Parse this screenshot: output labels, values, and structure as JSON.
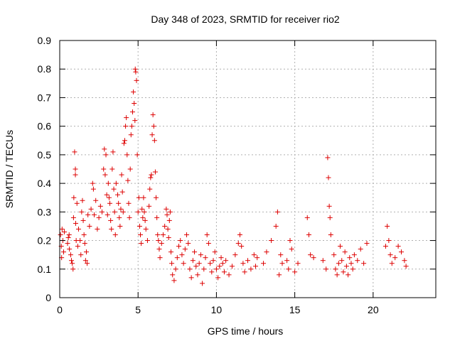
{
  "chart_data": {
    "type": "scatter",
    "title": "Day 348 of 2023, SRMTID for receiver rio2",
    "xlabel": "GPS time / hours",
    "ylabel": "SRMTID / TECUs",
    "xlim": [
      0,
      24
    ],
    "ylim": [
      0,
      0.9
    ],
    "xticks": [
      0,
      5,
      10,
      15,
      20
    ],
    "yticks": [
      0,
      0.1,
      0.2,
      0.3,
      0.4,
      0.5,
      0.6,
      0.7,
      0.8,
      0.9
    ],
    "xtick_labels": [
      "0",
      "5",
      "10",
      "15",
      "20"
    ],
    "ytick_labels": [
      "0",
      "0.1",
      "0.2",
      "0.3",
      "0.4",
      "0.5",
      "0.6",
      "0.7",
      "0.8",
      "0.9"
    ],
    "grid": true,
    "marker": "+",
    "color": "#dd0000",
    "series": [
      {
        "name": "SRMTID",
        "points": [
          [
            0.05,
            0.22
          ],
          [
            0.1,
            0.18
          ],
          [
            0.12,
            0.14
          ],
          [
            0.15,
            0.24
          ],
          [
            0.2,
            0.2
          ],
          [
            0.25,
            0.16
          ],
          [
            0.3,
            0.23
          ],
          [
            0.5,
            0.19
          ],
          [
            0.55,
            0.21
          ],
          [
            0.6,
            0.22
          ],
          [
            0.62,
            0.17
          ],
          [
            0.7,
            0.15
          ],
          [
            0.75,
            0.13
          ],
          [
            0.8,
            0.12
          ],
          [
            0.85,
            0.1
          ],
          [
            0.88,
            0.28
          ],
          [
            0.9,
            0.35
          ],
          [
            0.95,
            0.51
          ],
          [
            1.0,
            0.43
          ],
          [
            1.0,
            0.45
          ],
          [
            1.02,
            0.26
          ],
          [
            1.05,
            0.2
          ],
          [
            1.1,
            0.33
          ],
          [
            1.15,
            0.18
          ],
          [
            1.2,
            0.24
          ],
          [
            1.3,
            0.2
          ],
          [
            1.35,
            0.15
          ],
          [
            1.4,
            0.3
          ],
          [
            1.45,
            0.34
          ],
          [
            1.5,
            0.27
          ],
          [
            1.55,
            0.22
          ],
          [
            1.6,
            0.19
          ],
          [
            1.65,
            0.13
          ],
          [
            1.7,
            0.16
          ],
          [
            1.75,
            0.12
          ],
          [
            1.8,
            0.29
          ],
          [
            1.9,
            0.25
          ],
          [
            2.0,
            0.31
          ],
          [
            2.1,
            0.4
          ],
          [
            2.15,
            0.38
          ],
          [
            2.2,
            0.29
          ],
          [
            2.3,
            0.34
          ],
          [
            2.4,
            0.24
          ],
          [
            2.5,
            0.28
          ],
          [
            2.6,
            0.32
          ],
          [
            2.7,
            0.3
          ],
          [
            2.8,
            0.45
          ],
          [
            2.85,
            0.52
          ],
          [
            2.9,
            0.43
          ],
          [
            2.95,
            0.5
          ],
          [
            3.0,
            0.36
          ],
          [
            3.05,
            0.29
          ],
          [
            3.1,
            0.4
          ],
          [
            3.15,
            0.35
          ],
          [
            3.2,
            0.33
          ],
          [
            3.25,
            0.27
          ],
          [
            3.3,
            0.24
          ],
          [
            3.35,
            0.45
          ],
          [
            3.4,
            0.51
          ],
          [
            3.45,
            0.38
          ],
          [
            3.5,
            0.3
          ],
          [
            3.55,
            0.22
          ],
          [
            3.6,
            0.4
          ],
          [
            3.7,
            0.36
          ],
          [
            3.75,
            0.33
          ],
          [
            3.8,
            0.28
          ],
          [
            3.85,
            0.25
          ],
          [
            3.9,
            0.31
          ],
          [
            3.95,
            0.43
          ],
          [
            4.0,
            0.37
          ],
          [
            4.05,
            0.3
          ],
          [
            4.1,
            0.54
          ],
          [
            4.15,
            0.55
          ],
          [
            4.2,
            0.6
          ],
          [
            4.25,
            0.63
          ],
          [
            4.3,
            0.5
          ],
          [
            4.35,
            0.41
          ],
          [
            4.4,
            0.33
          ],
          [
            4.45,
            0.28
          ],
          [
            4.5,
            0.45
          ],
          [
            4.55,
            0.57
          ],
          [
            4.6,
            0.6
          ],
          [
            4.65,
            0.65
          ],
          [
            4.7,
            0.72
          ],
          [
            4.75,
            0.68
          ],
          [
            4.8,
            0.62
          ],
          [
            4.82,
            0.8
          ],
          [
            4.85,
            0.79
          ],
          [
            4.9,
            0.76
          ],
          [
            4.95,
            0.5
          ],
          [
            5.0,
            0.3
          ],
          [
            5.05,
            0.35
          ],
          [
            5.1,
            0.25
          ],
          [
            5.15,
            0.22
          ],
          [
            5.2,
            0.19
          ],
          [
            5.25,
            0.31
          ],
          [
            5.3,
            0.28
          ],
          [
            5.35,
            0.35
          ],
          [
            5.4,
            0.3
          ],
          [
            5.45,
            0.27
          ],
          [
            5.5,
            0.24
          ],
          [
            5.6,
            0.2
          ],
          [
            5.7,
            0.32
          ],
          [
            5.75,
            0.38
          ],
          [
            5.8,
            0.42
          ],
          [
            5.85,
            0.43
          ],
          [
            5.9,
            0.57
          ],
          [
            5.95,
            0.64
          ],
          [
            6.0,
            0.6
          ],
          [
            6.05,
            0.55
          ],
          [
            6.1,
            0.44
          ],
          [
            6.15,
            0.35
          ],
          [
            6.2,
            0.28
          ],
          [
            6.25,
            0.22
          ],
          [
            6.3,
            0.2
          ],
          [
            6.35,
            0.17
          ],
          [
            6.4,
            0.14
          ],
          [
            6.5,
            0.19
          ],
          [
            6.6,
            0.22
          ],
          [
            6.7,
            0.25
          ],
          [
            6.8,
            0.31
          ],
          [
            6.85,
            0.29
          ],
          [
            6.9,
            0.24
          ],
          [
            6.95,
            0.21
          ],
          [
            7.0,
            0.27
          ],
          [
            7.05,
            0.3
          ],
          [
            7.1,
            0.16
          ],
          [
            7.15,
            0.12
          ],
          [
            7.2,
            0.08
          ],
          [
            7.3,
            0.06
          ],
          [
            7.4,
            0.1
          ],
          [
            7.5,
            0.14
          ],
          [
            7.6,
            0.18
          ],
          [
            7.7,
            0.2
          ],
          [
            7.8,
            0.15
          ],
          [
            7.9,
            0.12
          ],
          [
            8.0,
            0.17
          ],
          [
            8.1,
            0.22
          ],
          [
            8.2,
            0.19
          ],
          [
            8.3,
            0.1
          ],
          [
            8.4,
            0.07
          ],
          [
            8.5,
            0.13
          ],
          [
            8.6,
            0.16
          ],
          [
            8.7,
            0.11
          ],
          [
            8.8,
            0.08
          ],
          [
            8.9,
            0.12
          ],
          [
            9.0,
            0.15
          ],
          [
            9.1,
            0.05
          ],
          [
            9.2,
            0.1
          ],
          [
            9.3,
            0.14
          ],
          [
            9.4,
            0.22
          ],
          [
            9.5,
            0.19
          ],
          [
            9.6,
            0.12
          ],
          [
            9.7,
            0.09
          ],
          [
            9.8,
            0.13
          ],
          [
            9.9,
            0.16
          ],
          [
            10.0,
            0.1
          ],
          [
            10.1,
            0.07
          ],
          [
            10.2,
            0.11
          ],
          [
            10.3,
            0.14
          ],
          [
            10.4,
            0.12
          ],
          [
            10.5,
            0.09
          ],
          [
            10.6,
            0.13
          ],
          [
            10.8,
            0.08
          ],
          [
            11.0,
            0.11
          ],
          [
            11.2,
            0.15
          ],
          [
            11.4,
            0.19
          ],
          [
            11.5,
            0.22
          ],
          [
            11.6,
            0.18
          ],
          [
            11.7,
            0.12
          ],
          [
            11.8,
            0.09
          ],
          [
            12.0,
            0.13
          ],
          [
            12.2,
            0.1
          ],
          [
            12.4,
            0.15
          ],
          [
            12.5,
            0.11
          ],
          [
            12.6,
            0.14
          ],
          [
            13.0,
            0.12
          ],
          [
            13.2,
            0.16
          ],
          [
            13.5,
            0.2
          ],
          [
            13.8,
            0.25
          ],
          [
            13.9,
            0.3
          ],
          [
            14.0,
            0.08
          ],
          [
            14.1,
            0.15
          ],
          [
            14.2,
            0.12
          ],
          [
            14.5,
            0.13
          ],
          [
            14.6,
            0.1
          ],
          [
            14.7,
            0.2
          ],
          [
            14.8,
            0.17
          ],
          [
            15.0,
            0.09
          ],
          [
            15.2,
            0.12
          ],
          [
            15.8,
            0.28
          ],
          [
            15.9,
            0.22
          ],
          [
            16.0,
            0.15
          ],
          [
            16.2,
            0.14
          ],
          [
            16.8,
            0.13
          ],
          [
            17.0,
            0.1
          ],
          [
            17.1,
            0.49
          ],
          [
            17.15,
            0.42
          ],
          [
            17.2,
            0.32
          ],
          [
            17.25,
            0.28
          ],
          [
            17.3,
            0.22
          ],
          [
            17.5,
            0.15
          ],
          [
            17.6,
            0.1
          ],
          [
            17.7,
            0.08
          ],
          [
            17.8,
            0.12
          ],
          [
            17.9,
            0.18
          ],
          [
            18.0,
            0.13
          ],
          [
            18.1,
            0.09
          ],
          [
            18.2,
            0.16
          ],
          [
            18.3,
            0.11
          ],
          [
            18.4,
            0.08
          ],
          [
            18.5,
            0.14
          ],
          [
            18.6,
            0.12
          ],
          [
            18.7,
            0.1
          ],
          [
            18.8,
            0.15
          ],
          [
            19.0,
            0.13
          ],
          [
            19.2,
            0.17
          ],
          [
            19.4,
            0.12
          ],
          [
            19.6,
            0.19
          ],
          [
            20.8,
            0.18
          ],
          [
            20.9,
            0.25
          ],
          [
            21.0,
            0.2
          ],
          [
            21.1,
            0.15
          ],
          [
            21.2,
            0.12
          ],
          [
            21.4,
            0.14
          ],
          [
            21.6,
            0.18
          ],
          [
            21.8,
            0.16
          ],
          [
            22.0,
            0.13
          ],
          [
            22.1,
            0.11
          ]
        ]
      }
    ]
  }
}
